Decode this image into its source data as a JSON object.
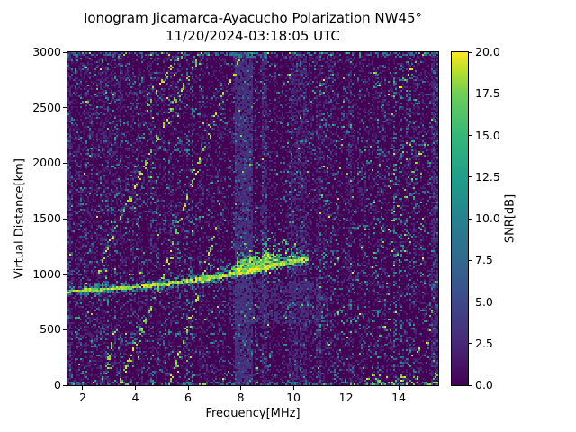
{
  "figure": {
    "title": "Ionogram Jicamarca-Ayacucho Polarization NW45°",
    "subtitle": "11/20/2024-03:18:05 UTC"
  },
  "chart_data": {
    "type": "heatmap",
    "title": "Ionogram Jicamarca-Ayacucho Polarization NW45°",
    "subtitle": "11/20/2024-03:18:05 UTC",
    "xlabel": "Frequency[MHz]",
    "ylabel": "Virtual Distance[km]",
    "xlim": [
      1.42,
      15.5
    ],
    "ylim": [
      0,
      3000
    ],
    "xticks": [
      2,
      4,
      6,
      8,
      10,
      12,
      14
    ],
    "yticks": [
      0,
      500,
      1000,
      1500,
      2000,
      2500,
      3000
    ],
    "grid": false,
    "colorbar": {
      "label": "SNR[dB]",
      "ticks": [
        "0.0",
        "2.5",
        "5.0",
        "7.5",
        "10.0",
        "12.5",
        "15.0",
        "17.5",
        "20.0"
      ],
      "range": [
        0,
        20
      ],
      "colormap": "viridis",
      "position": "right"
    },
    "colormap_stops": [
      [
        0,
        "#440154"
      ],
      [
        0.125,
        "#482878"
      ],
      [
        0.25,
        "#3e4989"
      ],
      [
        0.375,
        "#31688e"
      ],
      [
        0.5,
        "#26828e"
      ],
      [
        0.625,
        "#1f9e89"
      ],
      [
        0.75,
        "#35b779"
      ],
      [
        0.875,
        "#6ece58"
      ],
      [
        0.94,
        "#b5de2b"
      ],
      [
        1,
        "#fde725"
      ]
    ],
    "seed": 11,
    "features": {
      "main_trace": {
        "points": [
          [
            1.42,
            845
          ],
          [
            2,
            855
          ],
          [
            3,
            868
          ],
          [
            4,
            885
          ],
          [
            5,
            908
          ],
          [
            6,
            938
          ],
          [
            7,
            972
          ],
          [
            8,
            1015
          ],
          [
            9,
            1065
          ],
          [
            9.8,
            1105
          ],
          [
            10.45,
            1135
          ]
        ],
        "end_freq": 10.55,
        "snr_db": [
          17,
          20
        ]
      },
      "spread_cloud": {
        "f_range": [
          7.05,
          10.6
        ],
        "peak_freq": 8.9,
        "max_height_km": 310,
        "base_height_km": 80
      },
      "dense_blob": {
        "f_range": [
          7.6,
          9.5
        ],
        "km_below": 45,
        "km_above": 135,
        "snr_db": [
          15,
          20
        ]
      },
      "below_wash": {
        "f_range": [
          7.55,
          11.35
        ],
        "km_range": [
          555,
          935
        ],
        "snr_db": [
          1.8,
          4
        ]
      },
      "stripes": [
        {
          "f": [
            7.75,
            8.45
          ],
          "level": 3.0,
          "prob": 0.8
        },
        {
          "f": [
            8.8,
            9.0
          ],
          "level": 2.5,
          "prob": 0.5
        },
        {
          "f": [
            9.9,
            10.5
          ],
          "level": 2.3,
          "prob": 0.45
        },
        {
          "f": [
            10.85,
            11.05
          ],
          "level": 2.2,
          "prob": 0.35
        },
        {
          "f": [
            12.05,
            12.2
          ],
          "level": 2.2,
          "prob": 0.3
        },
        {
          "f": [
            15.25,
            15.5
          ],
          "level": 2.6,
          "prob": 0.55
        },
        {
          "f": [
            1.42,
            1.56
          ],
          "level": 2.4,
          "prob": 0.5
        }
      ],
      "arcs": [
        {
          "points": [
            [
              3.38,
              40
            ],
            [
              4.25,
              520
            ],
            [
              5.0,
              980
            ],
            [
              5.9,
              1680
            ],
            [
              7.0,
              2450
            ],
            [
              8.05,
              3000
            ]
          ]
        },
        {
          "points": [
            [
              2.55,
              1020
            ],
            [
              3.4,
              1520
            ],
            [
              4.5,
              2080
            ],
            [
              5.6,
              2620
            ],
            [
              6.45,
              3000
            ]
          ]
        },
        {
          "points": [
            [
              4.35,
              2480
            ],
            [
              5.1,
              2790
            ],
            [
              5.75,
              3000
            ]
          ]
        },
        {
          "points": [
            [
              2.75,
              60
            ],
            [
              3.25,
              560
            ]
          ]
        },
        {
          "points": [
            [
              5.3,
              60
            ],
            [
              6.2,
              700
            ],
            [
              7.05,
              1430
            ]
          ]
        }
      ],
      "dot_chains": [
        {
          "points": [
            [
              13.35,
              2480
            ],
            [
              14.85,
              2990
            ]
          ]
        },
        {
          "points": [
            [
              13.55,
              1440
            ],
            [
              14.1,
              1700
            ],
            [
              14.95,
              2200
            ]
          ]
        },
        {
          "points": [
            [
              13.35,
              920
            ],
            [
              14.55,
              1340
            ]
          ]
        },
        {
          "points": [
            [
              13.15,
              470
            ],
            [
              14.05,
              730
            ]
          ]
        },
        {
          "points": [
            [
              14.15,
              170
            ],
            [
              14.95,
              390
            ]
          ]
        },
        {
          "points": [
            [
              12.85,
              2680
            ],
            [
              13.35,
              2960
            ]
          ]
        }
      ],
      "green_dashes": [
        {
          "points": [
            [
              5.0,
              2500
            ],
            [
              6.35,
              2500
            ]
          ]
        },
        {
          "points": [
            [
              4.85,
              2140
            ],
            [
              6.3,
              2120
            ]
          ]
        },
        {
          "points": [
            [
              5.05,
              1500
            ],
            [
              6.25,
              1490
            ]
          ]
        },
        {
          "points": [
            [
              4.85,
              1155
            ],
            [
              6.5,
              1150
            ]
          ]
        },
        {
          "points": [
            [
              5.25,
              480
            ],
            [
              6.25,
              470
            ]
          ]
        },
        {
          "points": [
            [
              6.8,
              465
            ],
            [
              7.85,
              470
            ]
          ]
        },
        {
          "points": [
            [
              12.2,
              1420
            ],
            [
              13.1,
              1460
            ]
          ]
        }
      ],
      "noise": {
        "left": {
          "faint": 0.32,
          "teal": 0.07,
          "green": 0.018,
          "yellow": 0.005
        },
        "mid": {
          "faint": 0.25,
          "teal": 0.05,
          "green": 0.013,
          "yellow": 0.003
        },
        "right": {
          "faint": 0.26,
          "teal": 0.06,
          "green": 0.02,
          "yellow": 0.008
        },
        "left_max_f": 4.7,
        "right_min_f": 11.0
      }
    }
  }
}
